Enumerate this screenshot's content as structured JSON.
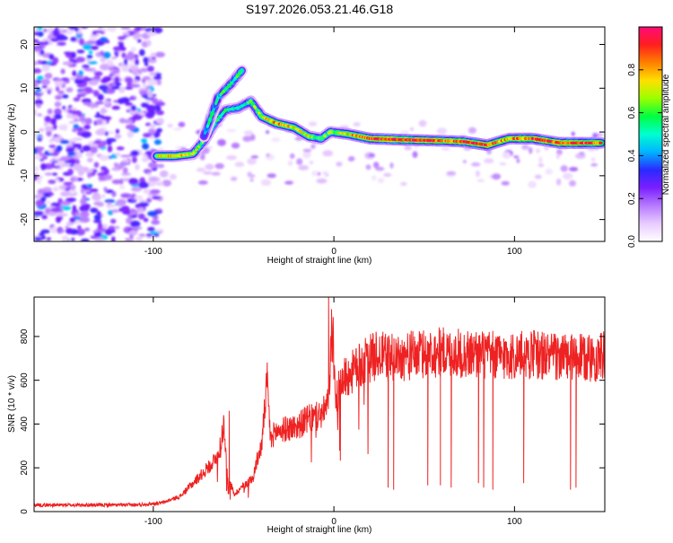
{
  "page_title": "S197.2026.053.21.46.G18",
  "chart_data": [
    {
      "type": "heatmap",
      "xlabel": "Height of straight line (km)",
      "ylabel": "Frequency (Hz)",
      "xlim": [
        -166,
        150
      ],
      "ylim": [
        -25,
        24
      ],
      "xticks": [
        -100,
        0,
        100
      ],
      "xtick_labels": [
        "-100",
        "0",
        "100"
      ],
      "yticks": [
        -20,
        -10,
        0,
        10,
        20
      ],
      "ytick_labels": [
        "-20",
        "-10",
        "0",
        "10",
        "20"
      ],
      "colorbar": {
        "label": "Normalized spectral amplitude",
        "range": [
          0.0,
          1.0
        ],
        "ticks": [
          0.0,
          0.2,
          0.4,
          0.6,
          0.8
        ],
        "tick_labels": [
          "0.0",
          "0.2",
          "0.4",
          "0.6",
          "0.8"
        ],
        "colors": [
          "#ffffff",
          "#e8ccff",
          "#b77aff",
          "#7a1fff",
          "#2a2aff",
          "#00b4ff",
          "#00ffd0",
          "#00ff40",
          "#9bff00",
          "#ffe000",
          "#ff8000",
          "#ff1e1e",
          "#ff0a78"
        ]
      },
      "ridge": [
        {
          "x": -98,
          "f": -5.5,
          "a": 0.75
        },
        {
          "x": -88,
          "f": -5.5,
          "a": 0.8
        },
        {
          "x": -78,
          "f": -5,
          "a": 0.7
        },
        {
          "x": -72,
          "f": -2,
          "a": 0.55
        },
        {
          "x": -66,
          "f": 2,
          "a": 0.55
        },
        {
          "x": -60,
          "f": 5,
          "a": 0.5
        },
        {
          "x": -53,
          "f": 5.5,
          "a": 0.55
        },
        {
          "x": -46,
          "f": 7,
          "a": 0.55
        },
        {
          "x": -40,
          "f": 3.5,
          "a": 0.7
        },
        {
          "x": -32,
          "f": 2,
          "a": 0.85
        },
        {
          "x": -22,
          "f": 1,
          "a": 0.75
        },
        {
          "x": -14,
          "f": -1,
          "a": 0.7
        },
        {
          "x": -7,
          "f": -1.5,
          "a": 0.6
        },
        {
          "x": -2,
          "f": 0,
          "a": 0.65
        },
        {
          "x": 8,
          "f": -0.5,
          "a": 0.75
        },
        {
          "x": 20,
          "f": -1.5,
          "a": 0.9
        },
        {
          "x": 40,
          "f": -1.8,
          "a": 0.95
        },
        {
          "x": 60,
          "f": -2,
          "a": 0.85
        },
        {
          "x": 72,
          "f": -2.2,
          "a": 0.9
        },
        {
          "x": 85,
          "f": -3,
          "a": 0.9
        },
        {
          "x": 97,
          "f": -1.5,
          "a": 0.8
        },
        {
          "x": 110,
          "f": -1.5,
          "a": 0.9
        },
        {
          "x": 125,
          "f": -2.5,
          "a": 0.9
        },
        {
          "x": 148,
          "f": -2.5,
          "a": 0.85
        }
      ],
      "ridge_branch": [
        {
          "x": -72,
          "f": -1,
          "a": 0.45
        },
        {
          "x": -64,
          "f": 8,
          "a": 0.5
        },
        {
          "x": -57,
          "f": 11,
          "a": 0.55
        },
        {
          "x": -51,
          "f": 14,
          "a": 0.5
        }
      ]
    },
    {
      "type": "line",
      "xlabel": "Height of straight line (km)",
      "ylabel": "SNR (10 * v/v)",
      "xlim": [
        -166,
        150
      ],
      "ylim": [
        0,
        980
      ],
      "xticks": [
        -100,
        0,
        100
      ],
      "xtick_labels": [
        "-100",
        "0",
        "100"
      ],
      "yticks": [
        0,
        200,
        400,
        600,
        800
      ],
      "ytick_labels": [
        "0",
        "200",
        "400",
        "600",
        "800"
      ],
      "color": "#ee2222",
      "series": [
        {
          "name": "SNR",
          "x": [
            -166,
            -150,
            -130,
            -110,
            -95,
            -85,
            -78,
            -72,
            -68,
            -64,
            -61,
            -59,
            -57,
            -55,
            -50,
            -45,
            -42,
            -40,
            -37,
            -35,
            -33,
            -30,
            -25,
            -20,
            -15,
            -10,
            -6,
            -3,
            -1,
            1,
            4,
            8,
            12,
            18,
            25,
            30,
            40,
            50,
            60,
            70,
            80,
            90,
            100,
            110,
            120,
            130,
            140,
            150
          ],
          "y": [
            30,
            30,
            30,
            30,
            40,
            70,
            130,
            180,
            220,
            250,
            400,
            160,
            120,
            80,
            120,
            150,
            250,
            300,
            600,
            320,
            360,
            370,
            380,
            390,
            420,
            430,
            450,
            500,
            880,
            500,
            600,
            620,
            650,
            690,
            720,
            700,
            710,
            720,
            730,
            720,
            720,
            710,
            710,
            720,
            710,
            700,
            700,
            710
          ]
        }
      ],
      "dips": [
        {
          "x": 30,
          "y": 110
        },
        {
          "x": 33,
          "y": 100
        },
        {
          "x": 52,
          "y": 120
        },
        {
          "x": 59,
          "y": 120
        },
        {
          "x": 65,
          "y": 110
        },
        {
          "x": 80,
          "y": 130
        },
        {
          "x": 83,
          "y": 110
        },
        {
          "x": 88,
          "y": 100
        },
        {
          "x": 105,
          "y": 130
        },
        {
          "x": 131,
          "y": 100
        },
        {
          "x": 134,
          "y": 110
        }
      ],
      "spikes": [
        {
          "x": -3,
          "y": 980
        },
        {
          "x": -58,
          "y": 460
        },
        {
          "x": -37,
          "y": 610
        },
        {
          "x": 59,
          "y": 830
        }
      ]
    }
  ]
}
